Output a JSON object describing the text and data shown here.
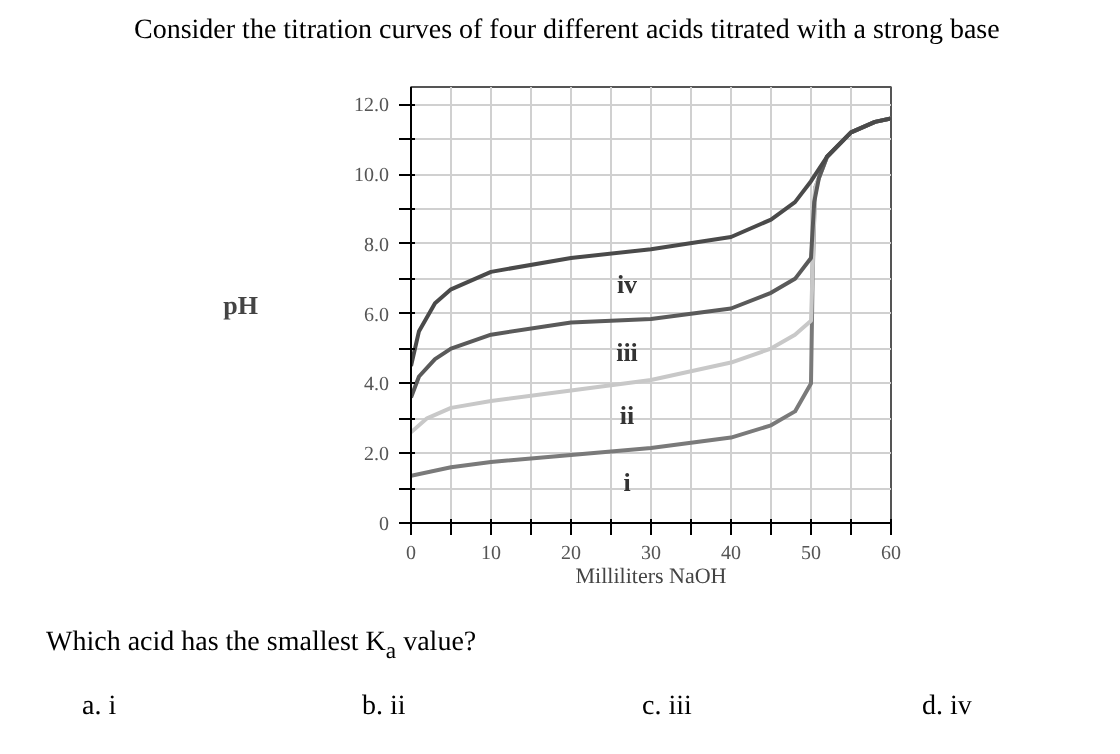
{
  "chart_data": {
    "type": "line",
    "title": "Consider the titration curves of four different acids titrated with a strong base",
    "xlabel": "Milliliters NaOH",
    "ylabel": "pH",
    "xlim": [
      0,
      60
    ],
    "ylim": [
      0,
      12.5
    ],
    "xticks": [
      0,
      {
        "value": 5,
        "label": null
      },
      10,
      {
        "value": 15,
        "label": null
      },
      20,
      {
        "value": 25,
        "label": null
      },
      30,
      {
        "value": 35,
        "label": null
      },
      40,
      {
        "value": 45,
        "label": null
      },
      50,
      {
        "value": 55,
        "label": null
      },
      60
    ],
    "yticks": [
      0,
      {
        "value": 1,
        "label": null
      },
      {
        "value": 2,
        "label": "2.0"
      },
      {
        "value": 3,
        "label": null
      },
      {
        "value": 4,
        "label": "4.0"
      },
      {
        "value": 5,
        "label": null
      },
      {
        "value": 6,
        "label": "6.0"
      },
      {
        "value": 7,
        "label": null
      },
      {
        "value": 8,
        "label": "8.0"
      },
      {
        "value": 9,
        "label": null
      },
      {
        "value": 10,
        "label": "10.0"
      },
      {
        "value": 11,
        "label": null
      },
      {
        "value": 12,
        "label": "12.0"
      }
    ],
    "grid": true,
    "line_style": "solid",
    "legend": false,
    "series": [
      {
        "name": "i",
        "color": "#7a7a7a",
        "x": [
          0,
          5,
          10,
          20,
          30,
          40,
          45,
          48,
          50,
          50.2,
          50.5,
          52,
          55,
          58,
          60
        ],
        "values": [
          1.35,
          1.6,
          1.75,
          1.95,
          2.15,
          2.45,
          2.8,
          3.2,
          4.0,
          7.0,
          9.6,
          10.5,
          11.2,
          11.5,
          11.6
        ]
      },
      {
        "name": "ii",
        "color": "#c8c8c8",
        "x": [
          0,
          2,
          5,
          10,
          20,
          30,
          40,
          45,
          48,
          50,
          50.3,
          50.5,
          52,
          55,
          58,
          60
        ],
        "values": [
          2.6,
          3.0,
          3.3,
          3.5,
          3.8,
          4.1,
          4.6,
          5.0,
          5.4,
          5.8,
          8.0,
          9.6,
          10.5,
          11.2,
          11.5,
          11.6
        ]
      },
      {
        "name": "iii",
        "color": "#5a5a5a",
        "x": [
          0,
          1,
          3,
          5,
          10,
          20,
          30,
          40,
          45,
          48,
          50,
          50.4,
          51,
          52,
          55,
          58,
          60
        ],
        "values": [
          3.6,
          4.2,
          4.7,
          5.0,
          5.4,
          5.75,
          5.85,
          6.15,
          6.6,
          7.0,
          7.6,
          9.2,
          9.9,
          10.5,
          11.2,
          11.5,
          11.6
        ]
      },
      {
        "name": "iv",
        "color": "#4a4a4a",
        "x": [
          0,
          1,
          3,
          5,
          10,
          20,
          30,
          40,
          45,
          48,
          50,
          52,
          55,
          58,
          60
        ],
        "values": [
          4.5,
          5.5,
          6.3,
          6.7,
          7.2,
          7.6,
          7.85,
          8.2,
          8.7,
          9.2,
          9.8,
          10.5,
          11.2,
          11.5,
          11.6
        ]
      }
    ],
    "annotations": [
      "Which acid has the smallest K$_{a}$ value?",
      "a. i",
      "b. ii",
      "c. iii",
      "d. iv"
    ]
  }
}
